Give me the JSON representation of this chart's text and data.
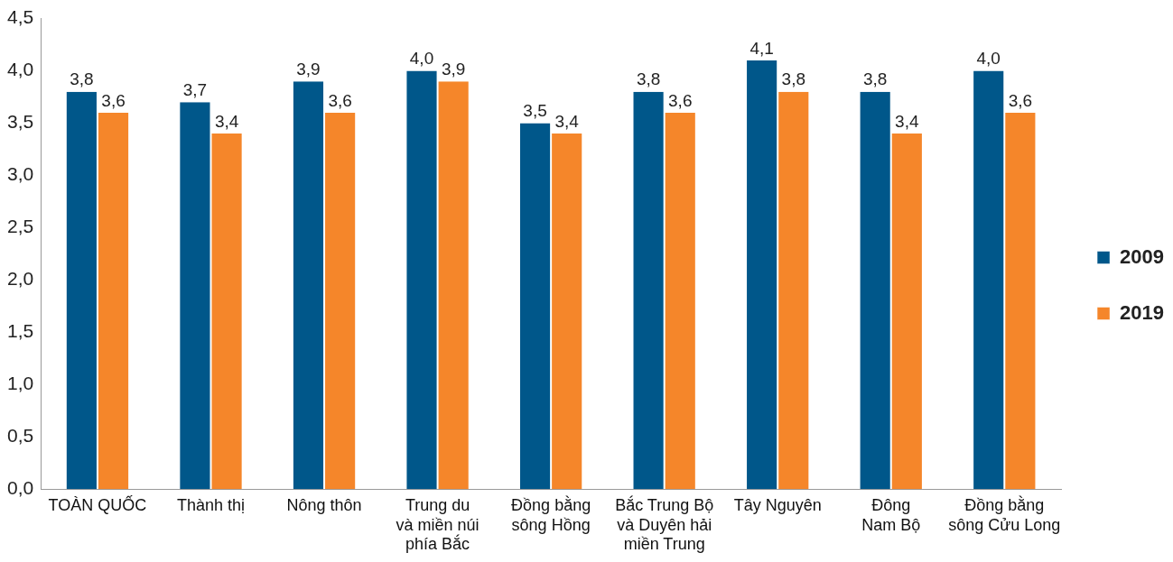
{
  "chart_data": {
    "type": "bar",
    "categories": [
      "TOÀN QUỐC",
      "Thành thị",
      "Nông thôn",
      "Trung du\nvà miền núi\nphía Bắc",
      "Đồng bằng\nsông Hồng",
      "Bắc Trung Bộ\nvà Duyên hải\nmiền Trung",
      "Tây Nguyên",
      "Đông\nNam Bộ",
      "Đồng bằng\nsông Cửu Long"
    ],
    "series": [
      {
        "name": "2009",
        "color": "#00578a",
        "values": [
          3.8,
          3.7,
          3.9,
          4.0,
          3.5,
          3.8,
          4.1,
          3.8,
          4.0
        ],
        "value_labels": [
          "3,8",
          "3,7",
          "3,9",
          "4,0",
          "3,5",
          "3,8",
          "4,1",
          "3,8",
          "4,0"
        ]
      },
      {
        "name": "2019",
        "color": "#f5862a",
        "values": [
          3.6,
          3.4,
          3.6,
          3.9,
          3.4,
          3.6,
          3.8,
          3.4,
          3.6
        ],
        "value_labels": [
          "3,6",
          "3,4",
          "3,6",
          "3,9",
          "3,4",
          "3,6",
          "3,8",
          "3,4",
          "3,6"
        ]
      }
    ],
    "ylim": [
      0,
      4.5
    ],
    "yticks": [
      {
        "value": 0,
        "label": "0,0"
      },
      {
        "value": 0.5,
        "label": "0,5"
      },
      {
        "value": 1,
        "label": "1,0"
      },
      {
        "value": 1.5,
        "label": "1,5"
      },
      {
        "value": 2,
        "label": "2,0"
      },
      {
        "value": 2.5,
        "label": "2,5"
      },
      {
        "value": 3,
        "label": "3,0"
      },
      {
        "value": 3.5,
        "label": "3,5"
      },
      {
        "value": 4,
        "label": "4,0"
      },
      {
        "value": 4.5,
        "label": "4,5"
      }
    ],
    "grid": false,
    "legend": "right"
  }
}
